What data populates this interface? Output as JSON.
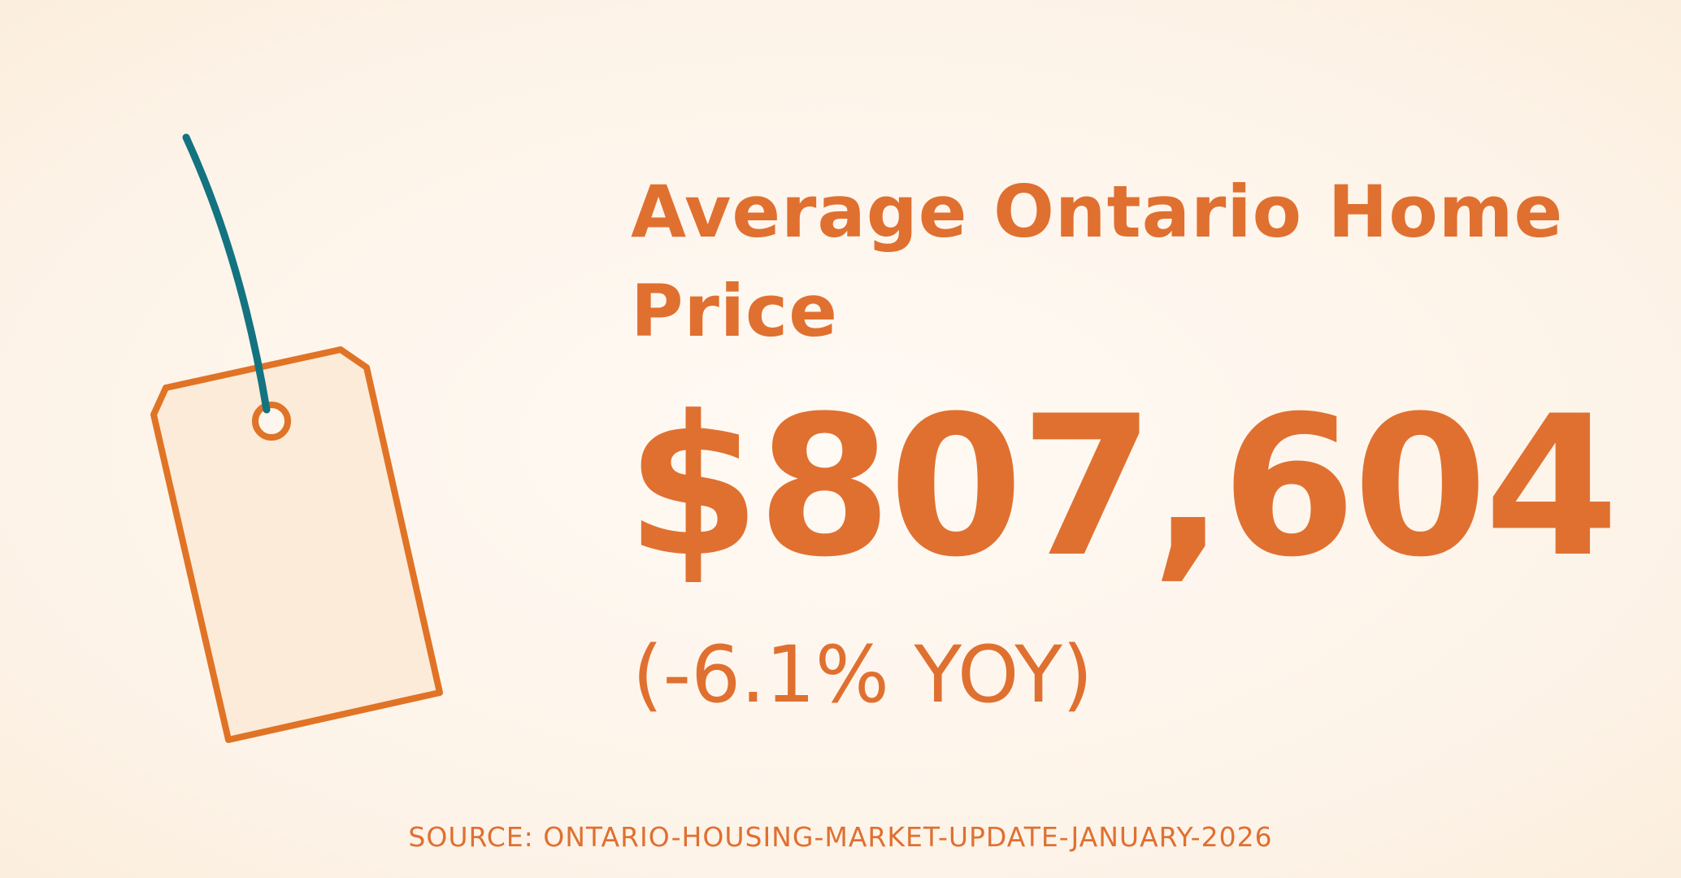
{
  "title": "Average Ontario Home Price",
  "value": "$807,604",
  "change": "(-6.1% YOY)",
  "source": "SOURCE: ONTARIO-HOUSING-MARKET-UPDATE-JANUARY-2026"
}
